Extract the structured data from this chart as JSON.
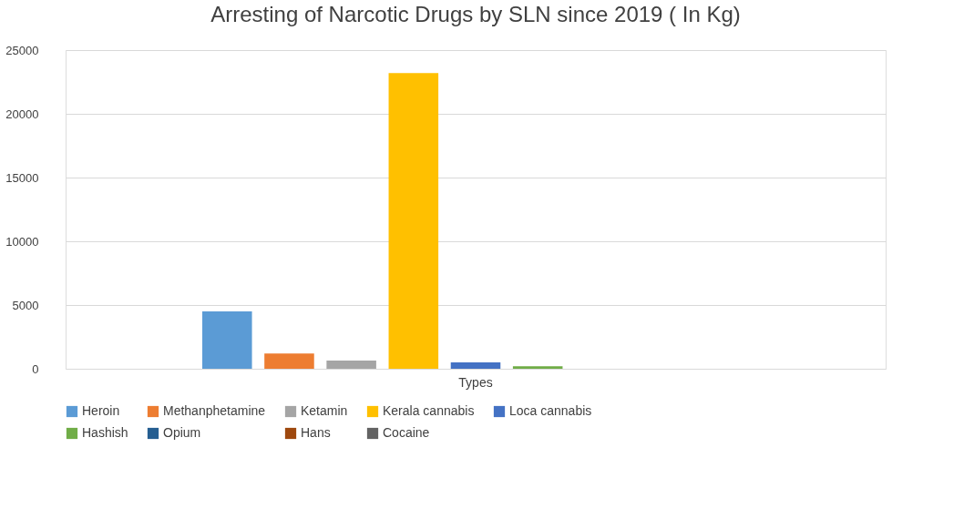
{
  "chart_data": {
    "type": "bar",
    "title": "Arresting of Narcotic Drugs by SLN since 2019 ( In Kg)",
    "categories": [
      "Types"
    ],
    "series": [
      {
        "name": "Heroin",
        "color": "#5b9bd5",
        "values": [
          4500
        ]
      },
      {
        "name": "Methanphetamine",
        "color": "#ed7d31",
        "values": [
          1200
        ]
      },
      {
        "name": "Ketamin",
        "color": "#a5a5a5",
        "values": [
          650
        ]
      },
      {
        "name": "Kerala cannabis",
        "color": "#ffc000",
        "values": [
          23200
        ]
      },
      {
        "name": "Loca cannabis",
        "color": "#4472c4",
        "values": [
          500
        ]
      },
      {
        "name": "Hashish",
        "color": "#70ad47",
        "values": [
          200
        ]
      },
      {
        "name": "Opium",
        "color": "#255e91",
        "values": [
          0
        ]
      },
      {
        "name": "Hans",
        "color": "#9e480e",
        "values": [
          0
        ]
      },
      {
        "name": "Cocaine",
        "color": "#636363",
        "values": [
          0
        ]
      }
    ],
    "ylim": [
      0,
      25000
    ],
    "yticks": [
      0,
      5000,
      10000,
      15000,
      20000,
      25000
    ],
    "grid": "y",
    "legend": "bottom"
  }
}
